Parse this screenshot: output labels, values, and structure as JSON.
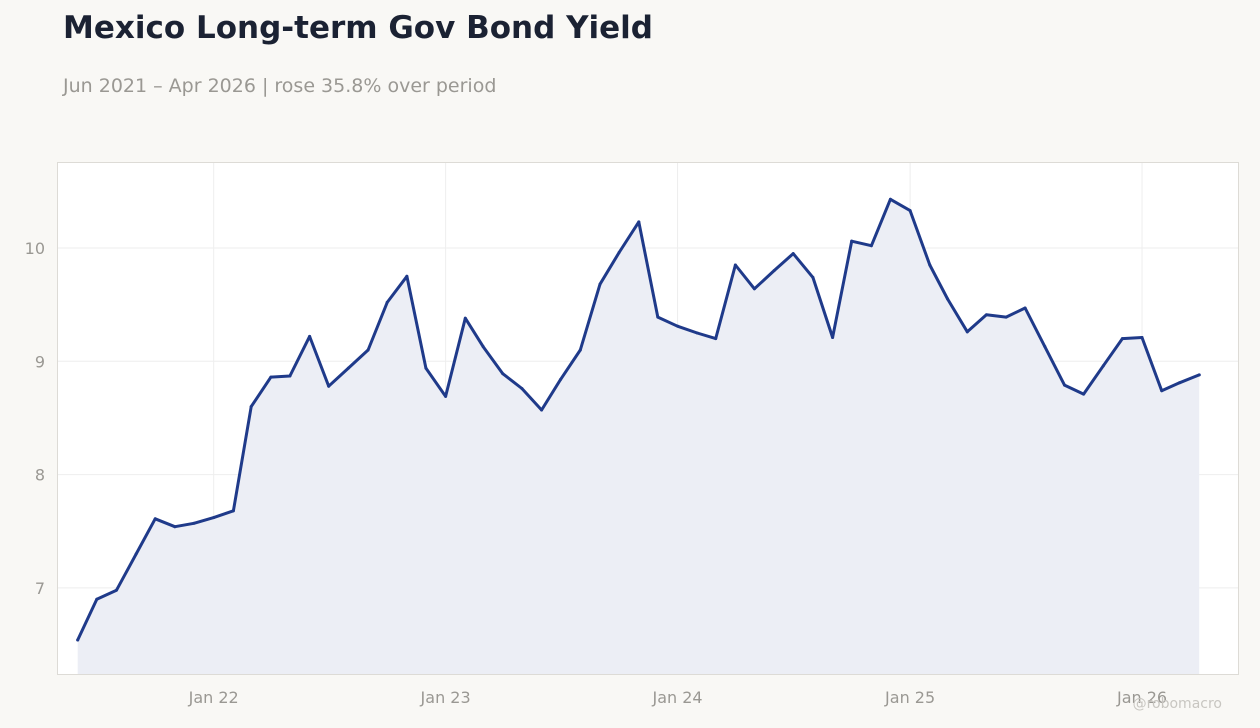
{
  "header": {
    "title": "Mexico Long-term Gov Bond Yield",
    "subtitle": "Jun 2021 – Apr 2026 | rose 35.8% over period"
  },
  "watermark": "@robomacro",
  "colors": {
    "line": "#1f3a8a",
    "area": "#eceef5",
    "grid": "#eeeeee",
    "plot_border": "#dddbd6",
    "tick_text": "#9a9893"
  },
  "chart_data": {
    "type": "area",
    "title": "Mexico Long-term Gov Bond Yield",
    "subtitle": "Jun 2021 – Apr 2026 | rose 35.8% over period",
    "xlabel": "",
    "ylabel": "",
    "x_ticks": [
      {
        "date": "2022-01-01",
        "label": "Jan 22"
      },
      {
        "date": "2023-01-01",
        "label": "Jan 23"
      },
      {
        "date": "2024-01-01",
        "label": "Jan 24"
      },
      {
        "date": "2025-01-01",
        "label": "Jan 25"
      },
      {
        "date": "2026-01-01",
        "label": "Jan 26"
      }
    ],
    "y_ticks": [
      7,
      8,
      9,
      10
    ],
    "xlim": [
      "2021-05-01",
      "2026-06-01"
    ],
    "ylim": [
      6.24,
      10.75
    ],
    "grid": true,
    "legend": "none",
    "series": [
      {
        "x": [
          "2021-06-01",
          "2021-07-01",
          "2021-08-01",
          "2021-09-01",
          "2021-10-01",
          "2021-11-01",
          "2021-12-01",
          "2022-01-01",
          "2022-02-01",
          "2022-03-01",
          "2022-04-01",
          "2022-05-01",
          "2022-06-01",
          "2022-07-01",
          "2022-08-01",
          "2022-09-01",
          "2022-10-01",
          "2022-11-01",
          "2022-12-01",
          "2023-01-01",
          "2023-02-01",
          "2023-03-01",
          "2023-04-01",
          "2023-05-01",
          "2023-06-01",
          "2023-07-01",
          "2023-08-01",
          "2023-09-01",
          "2023-10-01",
          "2023-11-01",
          "2023-12-01",
          "2024-01-01",
          "2024-02-01",
          "2024-03-01",
          "2024-04-01",
          "2024-05-01",
          "2024-06-01",
          "2024-07-01",
          "2024-08-01",
          "2024-09-01",
          "2024-10-01",
          "2024-11-01",
          "2024-12-01",
          "2025-01-01",
          "2025-02-01",
          "2025-03-01",
          "2025-04-01",
          "2025-05-01",
          "2025-06-01",
          "2025-07-01",
          "2025-08-01",
          "2025-09-01",
          "2025-10-01",
          "2025-11-01",
          "2025-12-01",
          "2026-01-01",
          "2026-02-01",
          "2026-03-01",
          "2026-04-01"
        ],
        "values": [
          6.54,
          6.9,
          6.98,
          7.3,
          7.61,
          7.54,
          7.57,
          7.62,
          7.68,
          8.6,
          8.86,
          8.87,
          9.22,
          8.78,
          8.94,
          9.1,
          9.52,
          9.75,
          8.94,
          8.69,
          9.38,
          9.13,
          8.89,
          8.76,
          8.57,
          8.84,
          9.1,
          9.68,
          9.96,
          10.23,
          9.39,
          9.31,
          9.25,
          9.2,
          9.85,
          9.64,
          9.8,
          9.95,
          9.74,
          9.21,
          10.06,
          10.02,
          10.43,
          10.33,
          9.85,
          9.55,
          9.26,
          9.41,
          9.39,
          9.47,
          9.13,
          8.79,
          8.71,
          8.96,
          9.2,
          9.21,
          8.74,
          8.81,
          8.88
        ]
      }
    ]
  }
}
